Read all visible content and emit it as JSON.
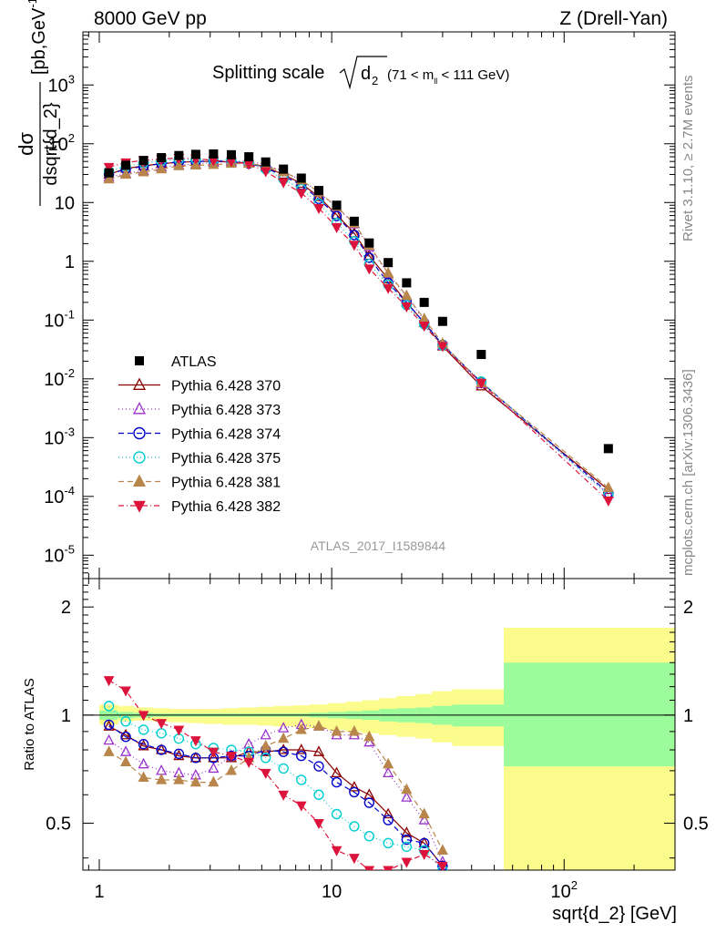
{
  "header": {
    "left": "8000 GeV pp",
    "right": "Z (Drell-Yan)",
    "title_main": "Splitting scale",
    "title_sym": "d",
    "title_sub": "2",
    "title_cut_pre": "(71 < m",
    "title_cut_sub": "ll",
    "title_cut_post": " < 111 GeV)",
    "side_rivet": "Rivet 3.1.10, ≥ 2.7M events",
    "side_mcplots": "mcplots.cern.ch [arXiv:1306.3436]",
    "watermark": "ATLAS_2017_I1589844"
  },
  "main_ylabel_num": "dσ",
  "main_ylabel_den": "dsqrt{d_2}",
  "main_ylabel_unit": "[pb,GeV",
  "main_ylabel_exp": "-1",
  "main_ylabel_close": "]",
  "ratio_ylabel": "Ratio to ATLAS",
  "xlabel": "sqrt{d_2} [GeV]",
  "main_yticks": [
    {
      "b": "10",
      "e": "-5"
    },
    {
      "b": "10",
      "e": "-4"
    },
    {
      "b": "10",
      "e": "-3"
    },
    {
      "b": "10",
      "e": "-2"
    },
    {
      "b": "10",
      "e": "-1"
    },
    {
      "b": "1",
      "e": ""
    },
    {
      "b": "10",
      "e": ""
    },
    {
      "b": "10",
      "e": "2"
    },
    {
      "b": "10",
      "e": "3"
    }
  ],
  "ratio_yticks": [
    "0.5",
    "1",
    "2"
  ],
  "xticks": [
    {
      "b": "1",
      "e": ""
    },
    {
      "b": "10",
      "e": ""
    },
    {
      "b": "10",
      "e": "2"
    }
  ],
  "legend": [
    {
      "label": "ATLAS",
      "marker": "square",
      "color": "#000000",
      "dash": ""
    },
    {
      "label": "Pythia 6.428 370",
      "marker": "tri-open",
      "color": "#8b0000",
      "dash": ""
    },
    {
      "label": "Pythia 6.428 373",
      "marker": "tri-open",
      "color": "#9932cc",
      "dash": "1,3"
    },
    {
      "label": "Pythia 6.428 374",
      "marker": "circle-open",
      "color": "#0000cd",
      "dash": "6,4"
    },
    {
      "label": "Pythia 6.428 375",
      "marker": "circle-open",
      "color": "#00ced1",
      "dash": "1,3"
    },
    {
      "label": "Pythia 6.428 381",
      "marker": "tri-filled",
      "color": "#b8864b",
      "dash": "6,4"
    },
    {
      "label": "Pythia 6.428 382",
      "marker": "tri-down-filled",
      "color": "#dc143c",
      "dash": "6,3,1,3"
    }
  ],
  "chart_data": [
    {
      "type": "scatter",
      "scale": "log-log",
      "title": "Splitting scale √d2 (71 < mll < 111 GeV)",
      "xlabel": "sqrt{d_2} [GeV]",
      "ylabel": "dσ/dsqrt{d_2} [pb,GeV-1]",
      "xlim": [
        0.85,
        300
      ],
      "ylim": [
        4e-06,
        8000
      ],
      "x": [
        1.1,
        1.3,
        1.55,
        1.85,
        2.2,
        2.6,
        3.1,
        3.7,
        4.4,
        5.2,
        6.2,
        7.4,
        8.8,
        10.5,
        12.5,
        14.5,
        17.5,
        21,
        25,
        30,
        44,
        155
      ],
      "series": [
        {
          "name": "ATLAS",
          "values": [
            32,
            43,
            52,
            58,
            63,
            66,
            67,
            65,
            60,
            49,
            37,
            26,
            16,
            9,
            4.8,
            2.05,
            0.95,
            0.43,
            0.2,
            0.095,
            0.026,
            0.00065
          ]
        },
        {
          "name": "Pythia 6.428 370",
          "values": [
            30,
            38,
            42,
            46,
            48,
            50,
            50,
            49,
            47,
            40,
            30,
            21,
            12.5,
            6.2,
            3.0,
            1.25,
            0.5,
            0.2,
            0.09,
            0.036,
            0.0075,
            0.00013
          ]
        },
        {
          "name": "Pythia 6.428 373",
          "values": [
            27,
            31,
            35,
            40,
            43,
            45,
            48,
            50,
            50,
            44,
            34,
            24,
            15,
            8.3,
            4.3,
            1.75,
            0.62,
            0.25,
            0.1,
            0.037,
            0.0082,
            0.00011
          ]
        },
        {
          "name": "Pythia 6.428 374",
          "values": [
            30,
            37,
            41,
            46,
            49,
            50,
            51,
            50,
            46,
            39,
            28,
            20,
            11.5,
            5.9,
            2.8,
            1.15,
            0.43,
            0.2,
            0.09,
            0.038,
            0.0088,
            0.000115
          ]
        },
        {
          "name": "Pythia 6.428 375",
          "values": [
            34,
            41,
            47,
            51,
            54,
            54,
            53,
            52,
            48,
            37,
            25,
            17,
            9.6,
            4.5,
            2.2,
            0.9,
            0.4,
            0.18,
            0.085,
            0.037,
            0.009,
            0.000105
          ]
        },
        {
          "name": "Pythia 6.428 381",
          "values": [
            25,
            30,
            33,
            37,
            42,
            43,
            44,
            46,
            46,
            42,
            33,
            24,
            15,
            8.5,
            4.4,
            1.85,
            0.63,
            0.26,
            0.105,
            0.04,
            0.0085,
            0.00014
          ]
        },
        {
          "name": "Pythia 6.428 382",
          "values": [
            40,
            48,
            52,
            55,
            57,
            56,
            52,
            50,
            45,
            34,
            22,
            14.5,
            8,
            3.8,
            1.9,
            0.75,
            0.35,
            0.17,
            0.08,
            0.036,
            0.0085,
            8.5e-05
          ]
        }
      ]
    },
    {
      "type": "line",
      "scale": "log-x",
      "ylabel": "Ratio to ATLAS",
      "xlabel": "sqrt{d_2} [GeV]",
      "xlim": [
        0.85,
        300
      ],
      "ylim": [
        0.37,
        2.4
      ],
      "x": [
        1.1,
        1.3,
        1.55,
        1.85,
        2.2,
        2.6,
        3.1,
        3.7,
        4.4,
        5.2,
        6.2,
        7.4,
        8.8,
        10.5,
        12.5,
        14.5,
        17.5,
        21,
        25,
        30
      ],
      "reference_line": 1,
      "uncertainty_bands": {
        "bin_edges": [
          1.0,
          1.2,
          1.4,
          1.7,
          2.0,
          2.4,
          2.8,
          3.4,
          4.0,
          4.8,
          5.6,
          6.8,
          8.0,
          9.6,
          11.5,
          13.5,
          16,
          19,
          23,
          27,
          33,
          55,
          300
        ],
        "stat_lo": [
          0.97,
          0.98,
          0.985,
          0.99,
          0.99,
          0.99,
          0.99,
          0.99,
          0.99,
          0.99,
          0.99,
          0.99,
          0.985,
          0.98,
          0.975,
          0.97,
          0.96,
          0.955,
          0.95,
          0.94,
          0.93,
          0.72
        ],
        "stat_hi": [
          1.03,
          1.02,
          1.015,
          1.01,
          1.01,
          1.01,
          1.01,
          1.01,
          1.01,
          1.01,
          1.01,
          1.01,
          1.015,
          1.02,
          1.025,
          1.03,
          1.04,
          1.045,
          1.05,
          1.06,
          1.07,
          1.4
        ],
        "total_lo": [
          0.94,
          0.96,
          0.965,
          0.96,
          0.955,
          0.95,
          0.945,
          0.94,
          0.94,
          0.935,
          0.93,
          0.925,
          0.92,
          0.91,
          0.9,
          0.89,
          0.88,
          0.87,
          0.86,
          0.84,
          0.82,
          0.37
        ],
        "total_hi": [
          1.07,
          1.06,
          1.05,
          1.045,
          1.04,
          1.04,
          1.04,
          1.045,
          1.05,
          1.055,
          1.06,
          1.065,
          1.07,
          1.08,
          1.09,
          1.1,
          1.115,
          1.13,
          1.145,
          1.165,
          1.18,
          1.75
        ]
      },
      "series": [
        {
          "name": "Pythia 6.428 370",
          "values": [
            0.93,
            0.88,
            0.82,
            0.8,
            0.77,
            0.76,
            0.76,
            0.76,
            0.79,
            0.79,
            0.8,
            0.8,
            0.79,
            0.69,
            0.63,
            0.6,
            0.53,
            0.47,
            0.44,
            0.38
          ]
        },
        {
          "name": "Pythia 6.428 373",
          "values": [
            0.85,
            0.79,
            0.73,
            0.7,
            0.69,
            0.68,
            0.71,
            0.77,
            0.83,
            0.88,
            0.92,
            0.94,
            0.93,
            0.88,
            0.88,
            0.84,
            0.69,
            0.59,
            0.51,
            0.39
          ]
        },
        {
          "name": "Pythia 6.428 374",
          "values": [
            0.94,
            0.87,
            0.83,
            0.8,
            0.78,
            0.76,
            0.76,
            0.77,
            0.77,
            0.8,
            0.79,
            0.77,
            0.72,
            0.65,
            0.61,
            0.57,
            0.51,
            0.45,
            0.44,
            0.38
          ]
        },
        {
          "name": "Pythia 6.428 375",
          "values": [
            1.06,
            0.96,
            0.91,
            0.89,
            0.86,
            0.83,
            0.81,
            0.8,
            0.79,
            0.76,
            0.71,
            0.66,
            0.6,
            0.53,
            0.49,
            0.46,
            0.44,
            0.43,
            0.42,
            0.37
          ]
        },
        {
          "name": "Pythia 6.428 381",
          "values": [
            0.79,
            0.74,
            0.67,
            0.66,
            0.66,
            0.65,
            0.65,
            0.7,
            0.76,
            0.82,
            0.86,
            0.91,
            0.93,
            0.9,
            0.9,
            0.87,
            0.73,
            0.62,
            0.53,
            0.42
          ]
        },
        {
          "name": "Pythia 6.428 382",
          "values": [
            1.25,
            1.17,
            1.0,
            0.95,
            0.91,
            0.85,
            0.79,
            0.77,
            0.74,
            0.69,
            0.6,
            0.56,
            0.5,
            0.42,
            0.4,
            0.37,
            0.37,
            0.39,
            0.41,
            0.38
          ]
        }
      ]
    }
  ]
}
